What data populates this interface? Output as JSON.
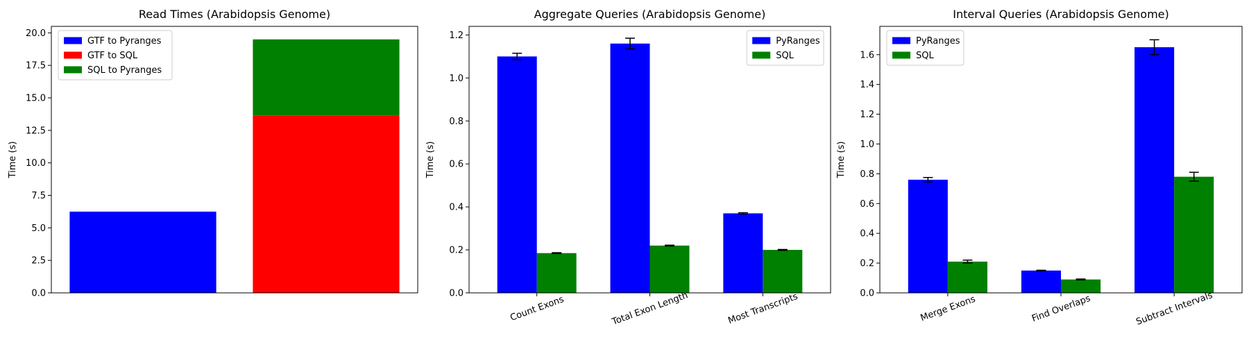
{
  "figure": {
    "panels": 3
  },
  "chart_data": [
    {
      "type": "bar",
      "stacked": true,
      "title": "Read Times (Arabidopsis Genome)",
      "xlabel": "",
      "ylabel": "Time (s)",
      "ylim": [
        0,
        20.5
      ],
      "yticks": [
        0.0,
        2.5,
        5.0,
        7.5,
        10.0,
        12.5,
        15.0,
        17.5,
        20.0
      ],
      "ytick_labels": [
        "0.0",
        "2.5",
        "5.0",
        "7.5",
        "10.0",
        "12.5",
        "15.0",
        "17.5",
        "20.0"
      ],
      "categories": [
        "",
        ""
      ],
      "series": [
        {
          "name": "GTF to Pyranges",
          "color": "#0000ff",
          "values": [
            6.25,
            0
          ]
        },
        {
          "name": "GTF to SQL",
          "color": "#ff0000",
          "values": [
            0,
            13.65
          ]
        },
        {
          "name": "SQL to Pyranges",
          "color": "#008000",
          "values": [
            0,
            5.85
          ]
        }
      ],
      "legend": "top-left",
      "grid": false
    },
    {
      "type": "bar",
      "title": "Aggregate Queries (Arabidopsis Genome)",
      "xlabel": "",
      "ylabel": "Time (s)",
      "ylim": [
        0,
        1.24
      ],
      "yticks": [
        0.0,
        0.2,
        0.4,
        0.6,
        0.8,
        1.0,
        1.2
      ],
      "ytick_labels": [
        "0.0",
        "0.2",
        "0.4",
        "0.6",
        "0.8",
        "1.0",
        "1.2"
      ],
      "categories": [
        "Count Exons",
        "Total Exon Length",
        "Most Transcripts"
      ],
      "series": [
        {
          "name": "PyRanges",
          "color": "#0000ff",
          "values": [
            1.1,
            1.16,
            0.37
          ],
          "errors": [
            0.015,
            0.025,
            0.003
          ]
        },
        {
          "name": "SQL",
          "color": "#008000",
          "values": [
            0.185,
            0.22,
            0.2
          ],
          "errors": [
            0.002,
            0.002,
            0.002
          ]
        }
      ],
      "legend": "top-right",
      "grid": false
    },
    {
      "type": "bar",
      "title": "Interval Queries (Arabidopsis Genome)",
      "xlabel": "",
      "ylabel": "Time (s)",
      "ylim": [
        0,
        1.79
      ],
      "yticks": [
        0.0,
        0.2,
        0.4,
        0.6,
        0.8,
        1.0,
        1.2,
        1.4,
        1.6
      ],
      "ytick_labels": [
        "0.0",
        "0.2",
        "0.4",
        "0.6",
        "0.8",
        "1.0",
        "1.2",
        "1.4",
        "1.6"
      ],
      "categories": [
        "Merge Exons",
        "Find Overlaps",
        "Subtract Intervals"
      ],
      "series": [
        {
          "name": "PyRanges",
          "color": "#0000ff",
          "values": [
            0.76,
            0.15,
            1.65
          ],
          "errors": [
            0.015,
            0.002,
            0.05
          ]
        },
        {
          "name": "SQL",
          "color": "#008000",
          "values": [
            0.21,
            0.09,
            0.78
          ],
          "errors": [
            0.01,
            0.003,
            0.03
          ]
        }
      ],
      "legend": "top-left",
      "grid": false
    }
  ]
}
